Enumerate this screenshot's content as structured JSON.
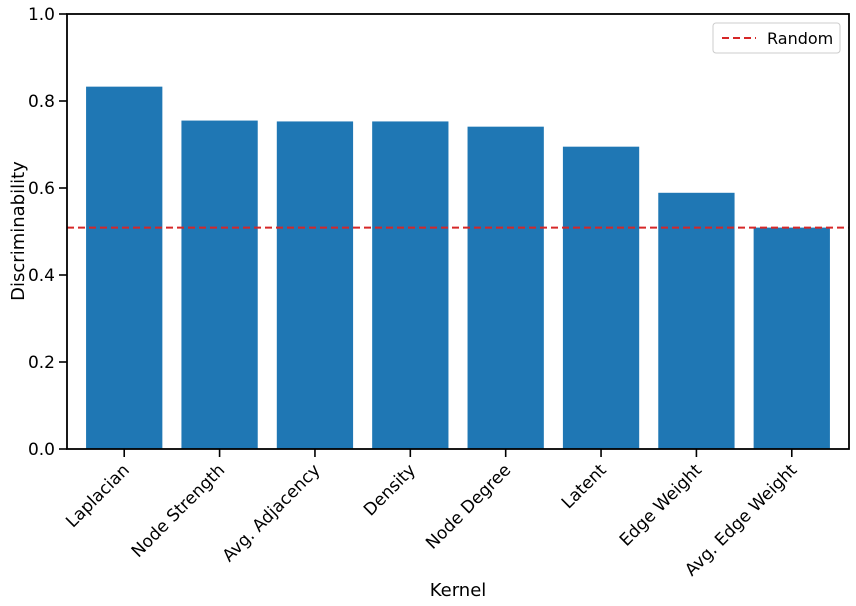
{
  "chart_data": {
    "type": "bar",
    "xlabel": "Kernel",
    "ylabel": "Discriminability",
    "ylim": [
      0,
      1.0
    ],
    "yticks": [
      "0.0",
      "0.2",
      "0.4",
      "0.6",
      "0.8",
      "1.0"
    ],
    "categories": [
      "Laplacian",
      "Node Strength",
      "Avg. Adjacency",
      "Density",
      "Node Degree",
      "Latent",
      "Edge Weight",
      "Avg. Edge Weight"
    ],
    "values": [
      0.833,
      0.755,
      0.753,
      0.753,
      0.741,
      0.695,
      0.589,
      0.509
    ],
    "bar_color": "#1f77b4",
    "reference_line": {
      "name": "Random",
      "value": 0.509,
      "color": "#d62728",
      "style": "dashed"
    },
    "legend": {
      "position": "top-right",
      "entries": [
        "Random"
      ]
    },
    "grid": false
  }
}
